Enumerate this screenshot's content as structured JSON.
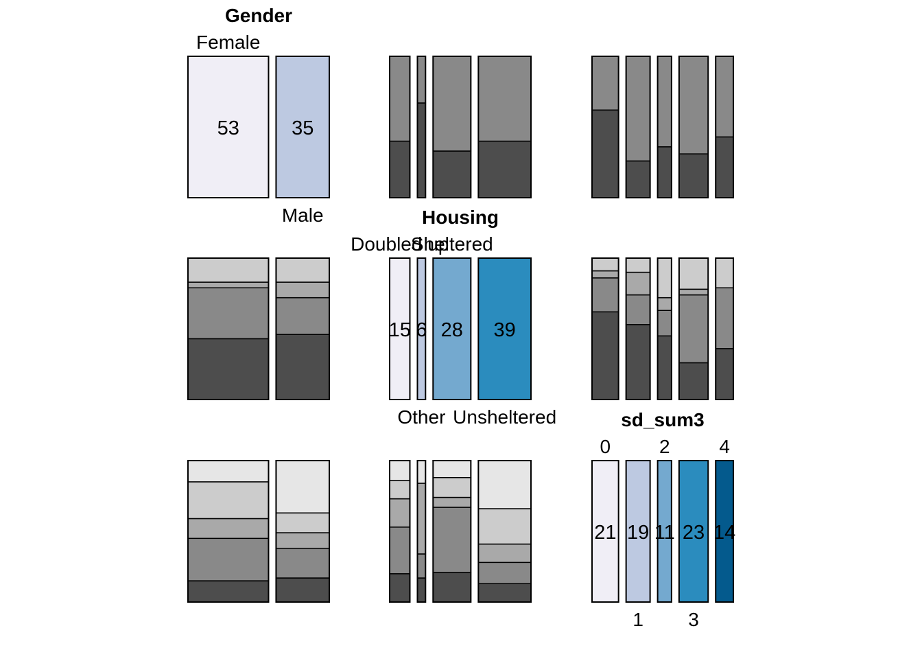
{
  "chart_data": {
    "type": "bar",
    "variables": [
      {
        "title": "Gender",
        "categories": [
          "Female",
          "Male"
        ],
        "counts": [
          53,
          35
        ],
        "colors": [
          "#f0eef6",
          "#bdc9e1"
        ]
      },
      {
        "title": "Housing",
        "categories": [
          "Doubled up",
          "Other",
          "Sheltered",
          "Unsheltered"
        ],
        "counts": [
          15,
          6,
          28,
          39
        ],
        "colors": [
          "#f0eef6",
          "#bdc9e1",
          "#74a9cf",
          "#2b8cbe"
        ]
      },
      {
        "title": "sd_sum3",
        "categories": [
          "0",
          "1",
          "2",
          "3",
          "4"
        ],
        "counts": [
          21,
          19,
          11,
          23,
          14
        ],
        "colors": [
          "#f0eef6",
          "#bdc9e1",
          "#74a9cf",
          "#2b8cbe",
          "#045a8d"
        ]
      }
    ],
    "panels": [
      {
        "row": 0,
        "col": 1,
        "proportions": [
          [
            0.4,
            0.6
          ],
          [
            0.67,
            0.33
          ],
          [
            0.33,
            0.67
          ],
          [
            0.4,
            0.6
          ]
        ]
      },
      {
        "row": 0,
        "col": 2,
        "proportions": [
          [
            0.62,
            0.38
          ],
          [
            0.26,
            0.74
          ],
          [
            0.36,
            0.64
          ],
          [
            0.31,
            0.69
          ],
          [
            0.43,
            0.57
          ]
        ]
      },
      {
        "row": 1,
        "col": 0,
        "proportions": [
          [
            0.43,
            0.36,
            0.04,
            0.17
          ],
          [
            0.46,
            0.26,
            0.11,
            0.17
          ]
        ]
      },
      {
        "row": 1,
        "col": 2,
        "proportions": [
          [
            0.62,
            0.24,
            0.05,
            0.09
          ],
          [
            0.53,
            0.21,
            0.16,
            0.1
          ],
          [
            0.45,
            0.18,
            0.09,
            0.28
          ],
          [
            0.26,
            0.48,
            0.04,
            0.22
          ],
          [
            0.36,
            0.43,
            0.0,
            0.21
          ]
        ]
      },
      {
        "row": 2,
        "col": 0,
        "proportions": [
          [
            0.15,
            0.3,
            0.14,
            0.26,
            0.15
          ],
          [
            0.17,
            0.21,
            0.11,
            0.14,
            0.37
          ]
        ]
      },
      {
        "row": 2,
        "col": 1,
        "proportions": [
          [
            0.2,
            0.33,
            0.2,
            0.13,
            0.14
          ],
          [
            0.17,
            0.17,
            0.5,
            0.0,
            0.16
          ],
          [
            0.21,
            0.46,
            0.07,
            0.14,
            0.12
          ],
          [
            0.13,
            0.15,
            0.13,
            0.25,
            0.34
          ]
        ]
      }
    ],
    "diagonal_labels": [
      "53",
      "35",
      "15",
      "6",
      "28",
      "39",
      "21",
      "19",
      "11",
      "23",
      "14"
    ],
    "grey_shades": [
      "#4d4d4d",
      "#898989",
      "#a9a9a9",
      "#cccccc",
      "#e6e6e6"
    ],
    "grid": false,
    "legend": "none"
  }
}
